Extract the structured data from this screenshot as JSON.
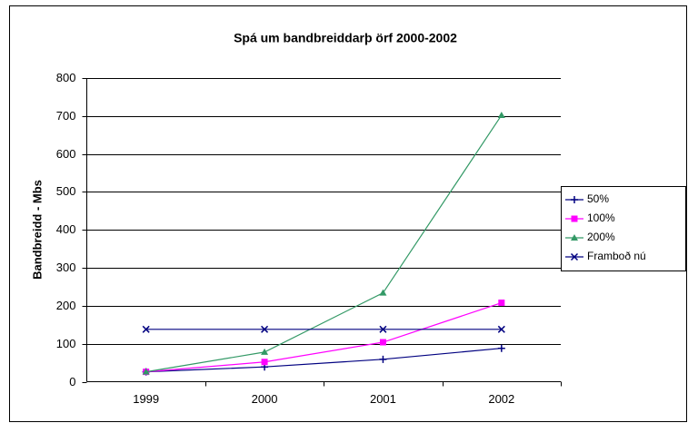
{
  "chart_data": {
    "type": "line",
    "title": "Spá um bandbreiddarþ örf 2000-2002",
    "y_label": "Bandbreidd - Mbs",
    "categories": [
      "1999",
      "2000",
      "2001",
      "2002"
    ],
    "series": [
      {
        "name": "50%",
        "color": "#000080",
        "marker": "plus",
        "values": [
          26,
          39,
          59,
          88
        ]
      },
      {
        "name": "100%",
        "color": "#ff00ff",
        "marker": "square",
        "values": [
          26,
          52,
          104,
          208
        ]
      },
      {
        "name": "200%",
        "color": "#339966",
        "marker": "triangle",
        "values": [
          26,
          78,
          234,
          702
        ]
      },
      {
        "name": "Framboð nú",
        "color": "#000080",
        "marker": "x",
        "values": [
          138,
          138,
          138,
          138
        ]
      }
    ],
    "ylim": [
      0,
      800
    ],
    "yticks": [
      0,
      100,
      200,
      300,
      400,
      500,
      600,
      700,
      800
    ],
    "grid": true,
    "legend": "right"
  }
}
